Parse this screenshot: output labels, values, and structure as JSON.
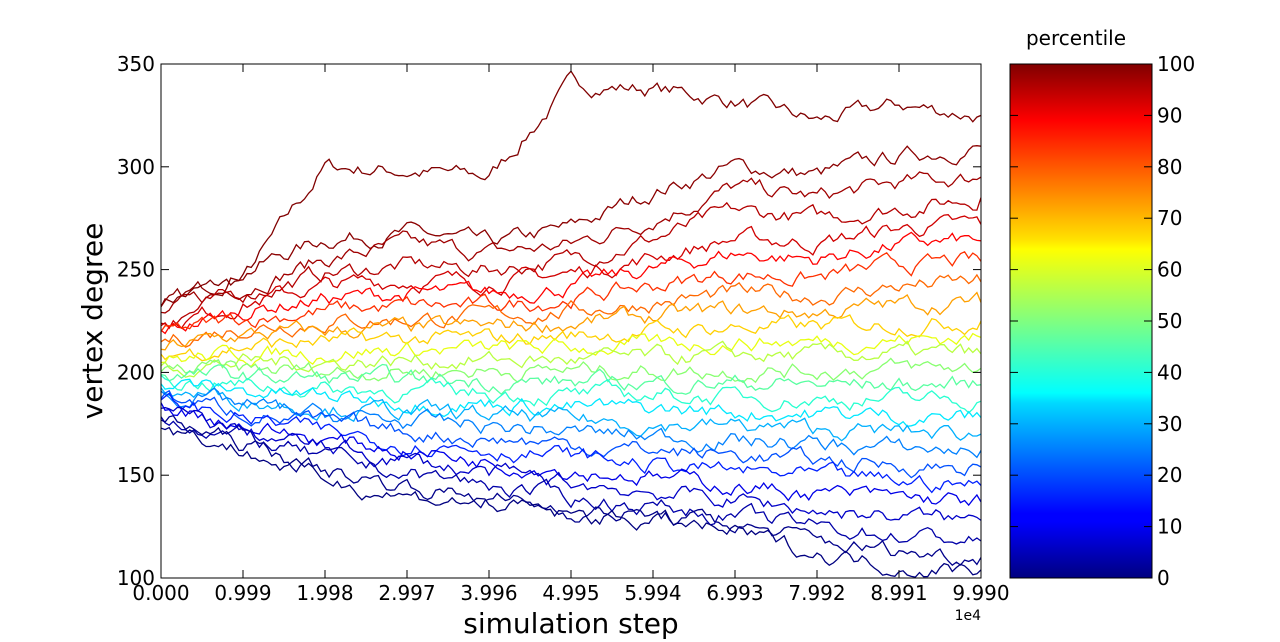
{
  "chart_data": {
    "type": "line",
    "title": "",
    "xlabel": "simulation step",
    "ylabel": "vertex degree",
    "x_offset_label": "1e4",
    "xlim": [
      0,
      9.99
    ],
    "ylim": [
      100,
      350
    ],
    "x_ticks": [
      "0.000",
      "0.999",
      "1.998",
      "2.997",
      "3.996",
      "4.995",
      "5.994",
      "6.993",
      "7.992",
      "8.991",
      "9.990"
    ],
    "y_ticks": [
      "100",
      "150",
      "200",
      "250",
      "300",
      "350"
    ],
    "x": [
      0,
      0.999,
      1.998,
      2.997,
      3.996,
      4.995,
      5.994,
      6.993,
      7.992,
      8.991,
      9.99
    ],
    "series_note_colormap": "jet",
    "series": [
      {
        "percentile": 100,
        "color": "#800000",
        "values": [
          235,
          245,
          300,
          298,
          295,
          340,
          338,
          332,
          322,
          330,
          325
        ]
      },
      {
        "percentile": 99,
        "color": "#8b0000",
        "values": [
          230,
          250,
          265,
          268,
          262,
          270,
          288,
          300,
          296,
          305,
          310
        ]
      },
      {
        "percentile": 97,
        "color": "#a00000",
        "values": [
          228,
          242,
          255,
          262,
          258,
          262,
          275,
          290,
          285,
          292,
          295
        ]
      },
      {
        "percentile": 95,
        "color": "#b40000",
        "values": [
          225,
          238,
          248,
          252,
          250,
          255,
          265,
          278,
          275,
          280,
          285
        ]
      },
      {
        "percentile": 92,
        "color": "#d00000",
        "values": [
          222,
          234,
          242,
          245,
          244,
          248,
          256,
          265,
          263,
          270,
          272
        ]
      },
      {
        "percentile": 90,
        "color": "#ff0000",
        "values": [
          220,
          230,
          236,
          238,
          238,
          242,
          250,
          258,
          255,
          262,
          264
        ]
      },
      {
        "percentile": 85,
        "color": "#ff3000",
        "values": [
          218,
          226,
          230,
          232,
          232,
          236,
          242,
          248,
          246,
          252,
          254
        ]
      },
      {
        "percentile": 80,
        "color": "#ff6800",
        "values": [
          215,
          222,
          225,
          226,
          227,
          230,
          234,
          238,
          237,
          242,
          244
        ]
      },
      {
        "percentile": 75,
        "color": "#ffa000",
        "values": [
          212,
          218,
          220,
          221,
          222,
          224,
          227,
          230,
          229,
          233,
          234
        ]
      },
      {
        "percentile": 70,
        "color": "#ffd000",
        "values": [
          209,
          213,
          215,
          216,
          216,
          218,
          220,
          222,
          222,
          224,
          225
        ]
      },
      {
        "percentile": 65,
        "color": "#e8ff10",
        "values": [
          206,
          209,
          210,
          211,
          211,
          212,
          213,
          215,
          215,
          216,
          217
        ]
      },
      {
        "percentile": 60,
        "color": "#b8ff40",
        "values": [
          203,
          205,
          205,
          206,
          206,
          206,
          207,
          208,
          208,
          209,
          209
        ]
      },
      {
        "percentile": 55,
        "color": "#88ff70",
        "values": [
          201,
          201,
          201,
          201,
          201,
          201,
          201,
          201,
          201,
          202,
          202
        ]
      },
      {
        "percentile": 50,
        "color": "#58ffa0",
        "values": [
          199,
          198,
          197,
          196,
          196,
          195,
          195,
          195,
          194,
          194,
          194
        ]
      },
      {
        "percentile": 45,
        "color": "#28ffd0",
        "values": [
          197,
          194,
          192,
          191,
          190,
          189,
          189,
          188,
          187,
          187,
          186
        ]
      },
      {
        "percentile": 40,
        "color": "#00e8ff",
        "values": [
          195,
          191,
          188,
          186,
          185,
          183,
          182,
          181,
          180,
          179,
          178
        ]
      },
      {
        "percentile": 35,
        "color": "#00b0ff",
        "values": [
          192,
          187,
          183,
          181,
          179,
          177,
          175,
          174,
          172,
          171,
          170
        ]
      },
      {
        "percentile": 30,
        "color": "#0080ff",
        "values": [
          190,
          184,
          179,
          176,
          174,
          171,
          169,
          167,
          165,
          163,
          162
        ]
      },
      {
        "percentile": 25,
        "color": "#0050ff",
        "values": [
          188,
          181,
          175,
          171,
          168,
          165,
          162,
          160,
          157,
          155,
          154
        ]
      },
      {
        "percentile": 20,
        "color": "#0020ff",
        "values": [
          186,
          178,
          171,
          166,
          163,
          159,
          155,
          152,
          149,
          147,
          145
        ]
      },
      {
        "percentile": 15,
        "color": "#0000e8",
        "values": [
          184,
          175,
          167,
          162,
          157,
          153,
          149,
          145,
          141,
          139,
          137
        ]
      },
      {
        "percentile": 10,
        "color": "#0000c8",
        "values": [
          182,
          171,
          163,
          157,
          151,
          146,
          142,
          138,
          133,
          130,
          128
        ]
      },
      {
        "percentile": 5,
        "color": "#0000a8",
        "values": [
          180,
          168,
          158,
          151,
          145,
          139,
          135,
          130,
          125,
          121,
          118
        ]
      },
      {
        "percentile": 2,
        "color": "#00008b",
        "values": [
          178,
          165,
          152,
          145,
          139,
          133,
          130,
          126,
          118,
          113,
          110
        ]
      },
      {
        "percentile": 0,
        "color": "#000080",
        "values": [
          175,
          162,
          148,
          140,
          136,
          130,
          128,
          122,
          112,
          106,
          104
        ]
      }
    ],
    "colorbar": {
      "title": "percentile",
      "ticks": [
        "0",
        "10",
        "20",
        "30",
        "40",
        "50",
        "60",
        "70",
        "80",
        "90",
        "100"
      ],
      "colormap": "jet"
    }
  }
}
